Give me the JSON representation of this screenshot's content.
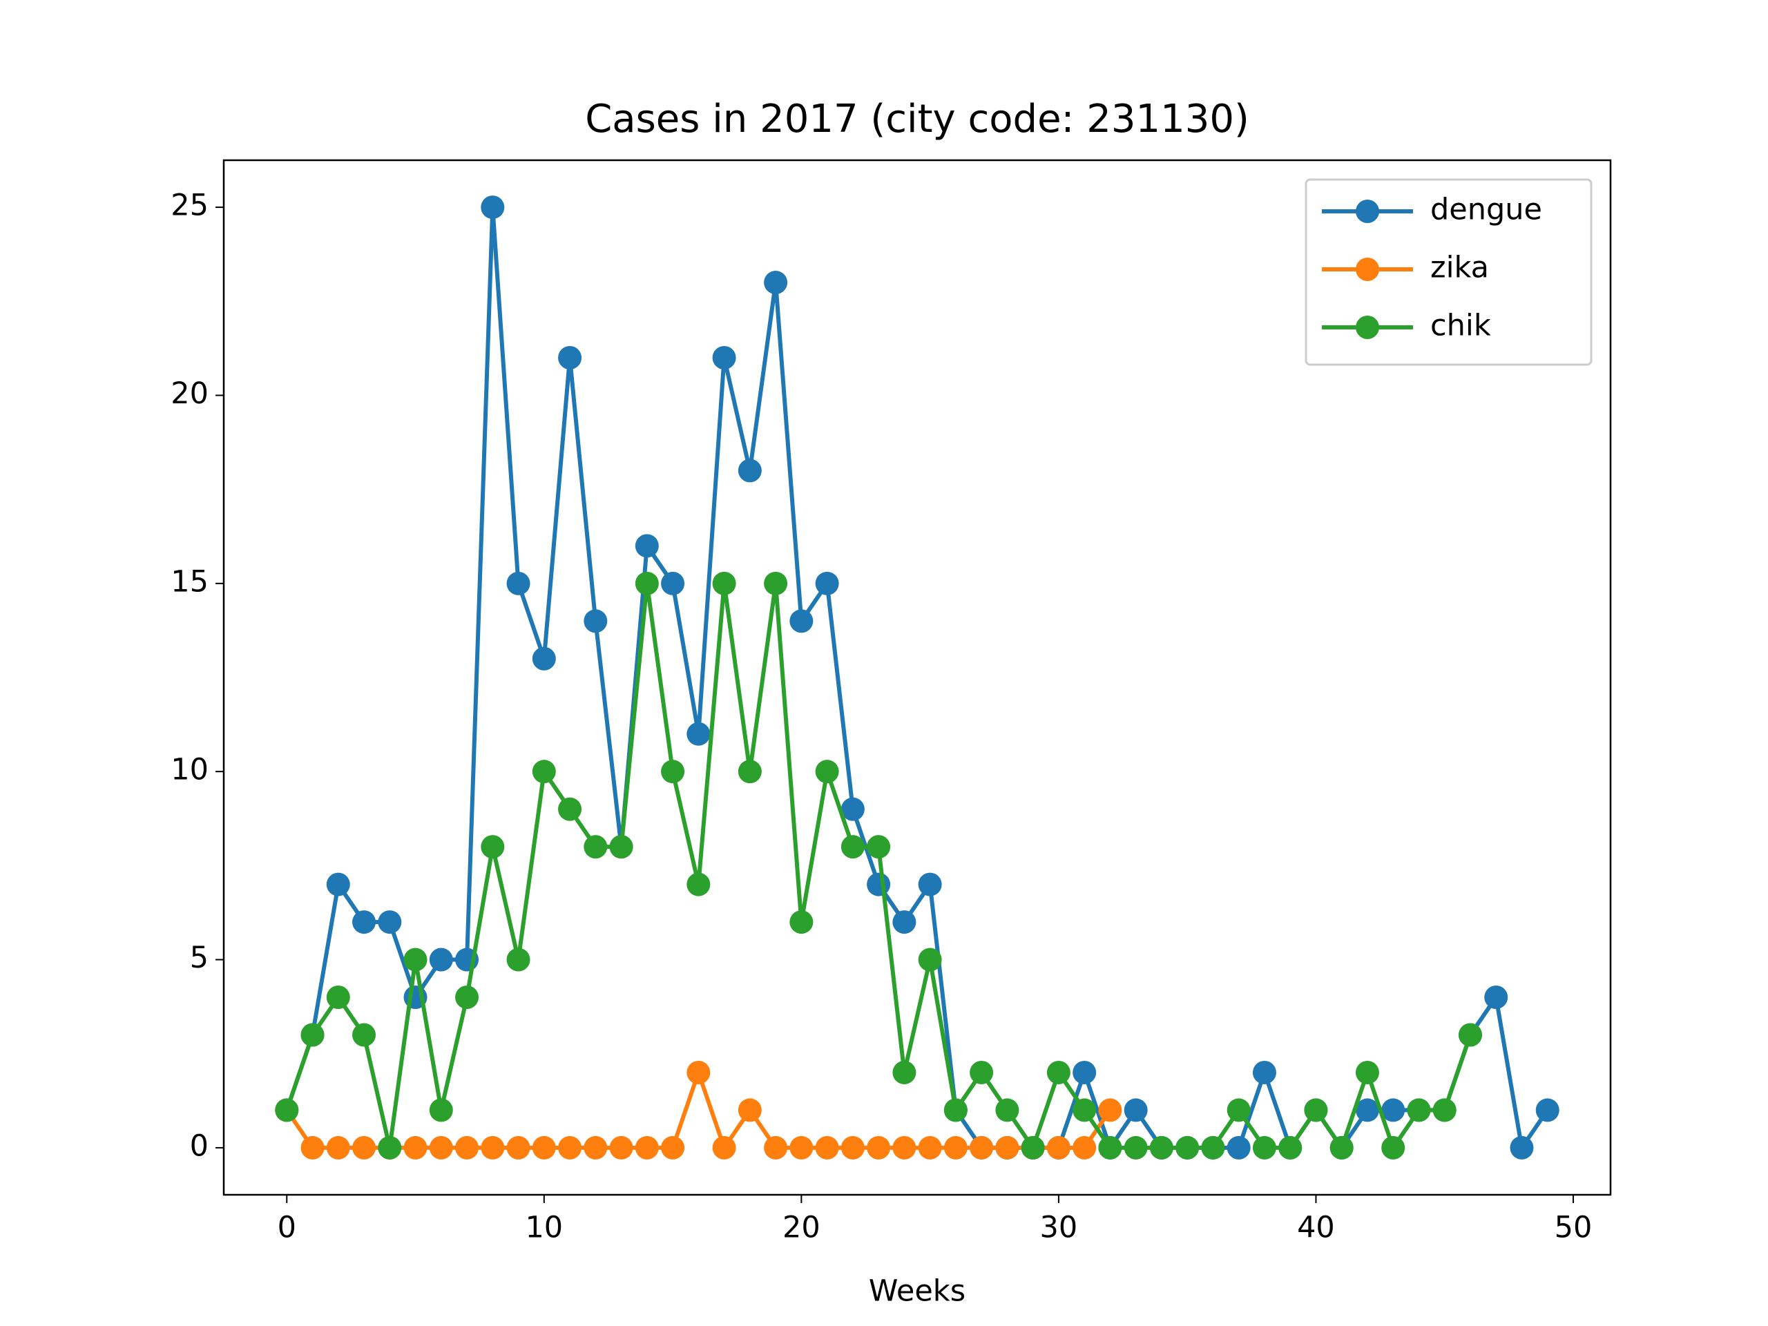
{
  "chart_data": {
    "type": "line",
    "title": "Cases in 2017 (city code: 231130)",
    "xlabel": "Weeks",
    "xlim": [
      -2.45,
      51.45
    ],
    "ylim": [
      -1.25,
      26.25
    ],
    "xticks": [
      0,
      10,
      20,
      30,
      40,
      50
    ],
    "yticks": [
      0,
      5,
      10,
      15,
      20,
      25
    ],
    "legend": "upper right",
    "series": [
      {
        "name": "dengue",
        "color": "#1f77b4",
        "x": [
          0,
          1,
          2,
          3,
          4,
          5,
          6,
          7,
          8,
          9,
          10,
          11,
          12,
          13,
          14,
          15,
          16,
          17,
          18,
          19,
          20,
          21,
          22,
          23,
          24,
          25,
          26,
          27,
          28,
          29,
          30,
          31,
          32,
          33,
          34,
          35,
          36,
          37,
          38,
          39,
          40,
          41,
          42,
          43,
          44,
          45,
          46,
          47,
          48,
          49
        ],
        "values": [
          1,
          3,
          7,
          6,
          6,
          4,
          5,
          5,
          25,
          15,
          13,
          21,
          14,
          8,
          16,
          15,
          11,
          21,
          18,
          23,
          14,
          15,
          9,
          7,
          6,
          7,
          1,
          0,
          0,
          0,
          0,
          2,
          0,
          1,
          0,
          0,
          0,
          0,
          2,
          0,
          1,
          0,
          1,
          1,
          1,
          1,
          3,
          4,
          0,
          1
        ]
      },
      {
        "name": "zika",
        "color": "#ff7f0e",
        "x": [
          0,
          1,
          2,
          3,
          4,
          5,
          6,
          7,
          8,
          9,
          10,
          11,
          12,
          13,
          14,
          15,
          16,
          17,
          18,
          19,
          20,
          21,
          22,
          23,
          24,
          25,
          26,
          27,
          28,
          29,
          30,
          31,
          32
        ],
        "values": [
          1,
          0,
          0,
          0,
          0,
          0,
          0,
          0,
          0,
          0,
          0,
          0,
          0,
          0,
          0,
          0,
          2,
          0,
          1,
          0,
          0,
          0,
          0,
          0,
          0,
          0,
          0,
          0,
          0,
          0,
          0,
          0,
          1
        ]
      },
      {
        "name": "chik",
        "color": "#2ca02c",
        "x": [
          0,
          1,
          2,
          3,
          4,
          5,
          6,
          7,
          8,
          9,
          10,
          11,
          12,
          13,
          14,
          15,
          16,
          17,
          18,
          19,
          20,
          21,
          22,
          23,
          24,
          25,
          26,
          27,
          28,
          29,
          30,
          31,
          32,
          33,
          34,
          35,
          36,
          37,
          38,
          39,
          40,
          41,
          42,
          43,
          44,
          45,
          46
        ],
        "values": [
          1,
          3,
          4,
          3,
          0,
          5,
          1,
          4,
          8,
          5,
          10,
          9,
          8,
          8,
          15,
          10,
          7,
          15,
          10,
          15,
          6,
          10,
          8,
          8,
          2,
          5,
          1,
          2,
          1,
          0,
          2,
          1,
          0,
          0,
          0,
          0,
          0,
          1,
          0,
          0,
          1,
          0,
          2,
          0,
          1,
          1,
          3
        ]
      }
    ]
  }
}
